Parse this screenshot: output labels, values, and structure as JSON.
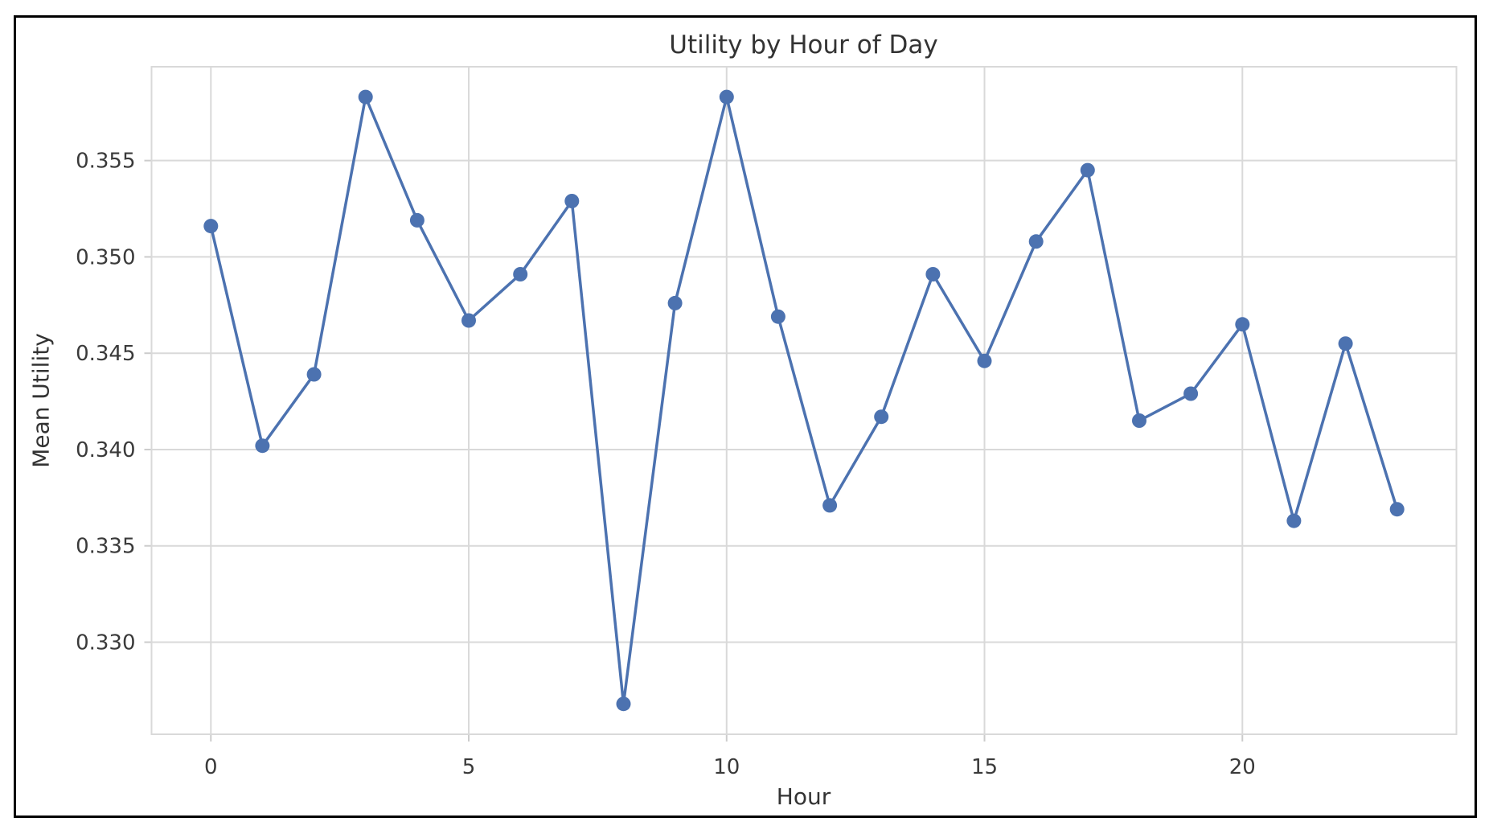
{
  "figure": {
    "background": "#ffffff",
    "frame_border_color": "#000000"
  },
  "chart_data": {
    "type": "line",
    "title": "Utility by Hour of Day",
    "xlabel": "Hour",
    "ylabel": "Mean Utility",
    "x": [
      0,
      1,
      2,
      3,
      4,
      5,
      6,
      7,
      8,
      9,
      10,
      11,
      12,
      13,
      14,
      15,
      16,
      17,
      18,
      19,
      20,
      21,
      22,
      23
    ],
    "series": [
      {
        "name": "Mean Utility",
        "values": [
          0.3516,
          0.3402,
          0.3439,
          0.3583,
          0.3519,
          0.3467,
          0.3491,
          0.3529,
          0.3268,
          0.3476,
          0.3583,
          0.3469,
          0.3371,
          0.3417,
          0.3491,
          0.3446,
          0.3508,
          0.3545,
          0.3415,
          0.3429,
          0.3465,
          0.3363,
          0.3455,
          0.3369
        ],
        "color": "#4C72B0",
        "marker": "circle",
        "marker_radius": 9,
        "line_width": 3.5
      }
    ],
    "xlim": [
      -1.15,
      24.15
    ],
    "ylim": [
      0.32522,
      0.35987
    ],
    "xticks": [
      {
        "value": 0,
        "label": "0"
      },
      {
        "value": 5,
        "label": "5"
      },
      {
        "value": 10,
        "label": "10"
      },
      {
        "value": 15,
        "label": "15"
      },
      {
        "value": 20,
        "label": "20"
      }
    ],
    "yticks": [
      {
        "value": 0.33,
        "label": "0.330"
      },
      {
        "value": 0.335,
        "label": "0.335"
      },
      {
        "value": 0.34,
        "label": "0.340"
      },
      {
        "value": 0.345,
        "label": "0.345"
      },
      {
        "value": 0.35,
        "label": "0.350"
      },
      {
        "value": 0.355,
        "label": "0.355"
      }
    ],
    "grid": true,
    "grid_color": "#d9d9d9",
    "spine_color": "#d9d9d9",
    "tick_mark_color": "#cccccc",
    "text_color": "#3a3a3a",
    "legend": null
  }
}
